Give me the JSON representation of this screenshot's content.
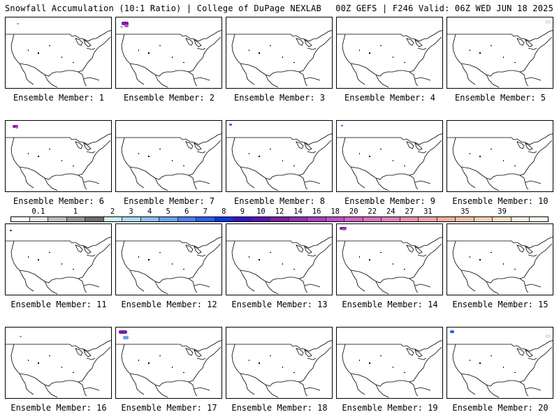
{
  "header": {
    "title_left": "Snowfall Accumulation (10:1 Ratio) | College of DuPage NEXLAB",
    "title_right": "00Z GEFS | F246 Valid: 06Z WED JUN 18 2025"
  },
  "colorbar": {
    "labels": [
      "0.1",
      "1",
      "2",
      "3",
      "4",
      "5",
      "6",
      "7",
      "8",
      "9",
      "10",
      "12",
      "14",
      "16",
      "18",
      "20",
      "22",
      "24",
      "27",
      "31",
      "35",
      "39"
    ],
    "colors": [
      "#ffffff",
      "#e6e6e6",
      "#bdbdbd",
      "#969696",
      "#6e6e6e",
      "#c8f0f0",
      "#a8dcf0",
      "#8cc0f0",
      "#6ea0f0",
      "#4f7df0",
      "#2f5af0",
      "#1030f0",
      "#3a10c8",
      "#5a10b4",
      "#7820a0",
      "#9030b0",
      "#a840c0",
      "#c050c8",
      "#d060c8",
      "#d870c0",
      "#e080b8",
      "#e890b0",
      "#f0a0a8",
      "#f0b0a0",
      "#f0c0a8",
      "#f4d0b8",
      "#f8e0c8",
      "#fcefe0",
      "#fff8ee"
    ]
  },
  "members": [
    {
      "label": "Ensemble Member: 1"
    },
    {
      "label": "Ensemble Member: 2"
    },
    {
      "label": "Ensemble Member: 3"
    },
    {
      "label": "Ensemble Member: 4"
    },
    {
      "label": "Ensemble Member: 5"
    },
    {
      "label": "Ensemble Member: 6"
    },
    {
      "label": "Ensemble Member: 7"
    },
    {
      "label": "Ensemble Member: 8"
    },
    {
      "label": "Ensemble Member: 9"
    },
    {
      "label": "Ensemble Member: 10"
    },
    {
      "label": "Ensemble Member: 11"
    },
    {
      "label": "Ensemble Member: 12"
    },
    {
      "label": "Ensemble Member: 13"
    },
    {
      "label": "Ensemble Member: 14"
    },
    {
      "label": "Ensemble Member: 15"
    },
    {
      "label": "Ensemble Member: 16"
    },
    {
      "label": "Ensemble Member: 17"
    },
    {
      "label": "Ensemble Member: 18"
    },
    {
      "label": "Ensemble Member: 19"
    },
    {
      "label": "Ensemble Member: 20"
    }
  ]
}
